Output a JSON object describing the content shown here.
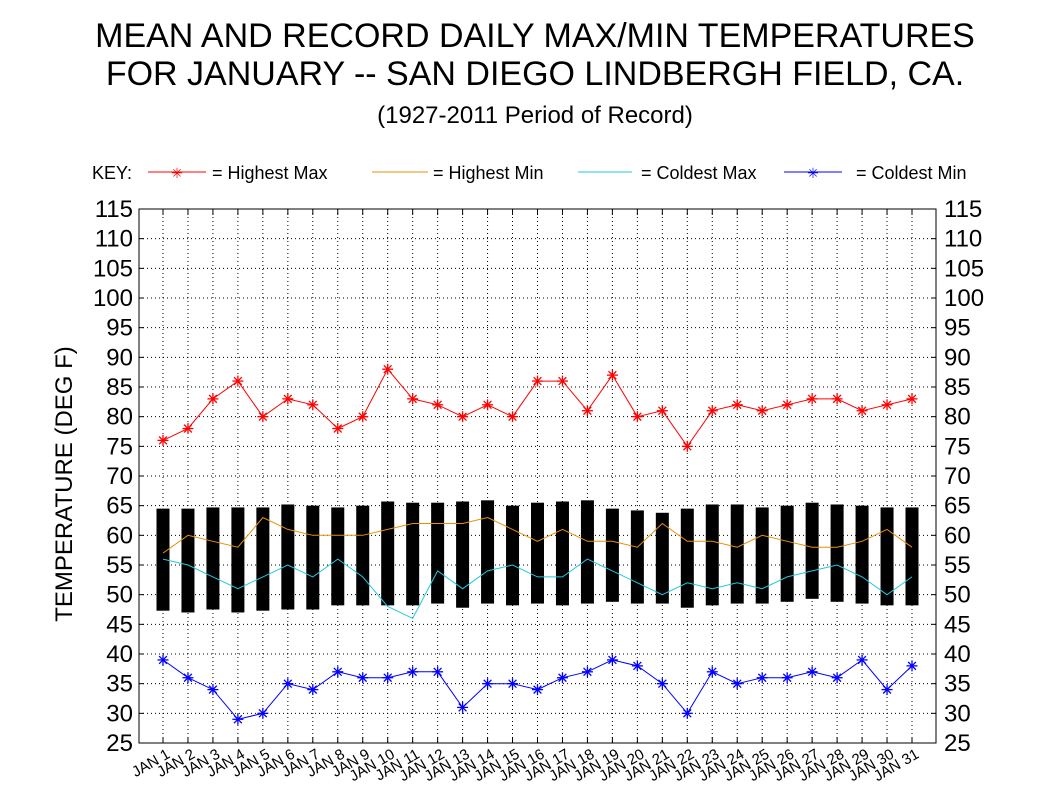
{
  "title_line1": "MEAN AND RECORD DAILY MAX/MIN TEMPERATURES",
  "title_line2": "FOR JANUARY -- SAN DIEGO LINDBERGH FIELD, CA.",
  "subtitle": "(1927-2011 Period of Record)",
  "key": {
    "label": "KEY:",
    "highest_max": "= Highest Max",
    "highest_min": "= Highest Min",
    "coldest_max": "= Coldest Max",
    "coldest_min": "= Coldest Min"
  },
  "colors": {
    "highest_max": "#ff0000",
    "highest_min": "#e8900a",
    "coldest_max": "#22c8e0",
    "coldest_min": "#0000ff",
    "bars": "#000000",
    "grid": "#000000"
  },
  "chart_data": {
    "type": "line",
    "ylabel": "TEMPERATURE (DEG F)",
    "ylim": [
      25,
      115
    ],
    "yticks": [
      25,
      30,
      35,
      40,
      45,
      50,
      55,
      60,
      65,
      70,
      75,
      80,
      85,
      90,
      95,
      100,
      105,
      110,
      115
    ],
    "grid": true,
    "legend": "top",
    "categories": [
      "JAN 1",
      "JAN 2",
      "JAN 3",
      "JAN 4",
      "JAN 5",
      "JAN 6",
      "JAN 7",
      "JAN 8",
      "JAN 9",
      "JAN 10",
      "JAN 11",
      "JAN 12",
      "JAN 13",
      "JAN 14",
      "JAN 15",
      "JAN 16",
      "JAN 17",
      "JAN 18",
      "JAN 19",
      "JAN 20",
      "JAN 21",
      "JAN 22",
      "JAN 23",
      "JAN 24",
      "JAN 25",
      "JAN 26",
      "JAN 27",
      "JAN 28",
      "JAN 29",
      "JAN 30",
      "JAN 31"
    ],
    "bars": {
      "high": [
        64.5,
        64.5,
        64.7,
        64.7,
        64.7,
        65.2,
        65.0,
        64.7,
        65.0,
        65.7,
        65.5,
        65.5,
        65.7,
        65.9,
        65.0,
        65.5,
        65.7,
        65.9,
        64.5,
        64.2,
        63.8,
        64.5,
        65.2,
        65.2,
        64.7,
        65.0,
        65.5,
        65.2,
        65.0,
        64.7,
        64.7
      ],
      "low": [
        47.3,
        47.0,
        47.5,
        47.0,
        47.3,
        47.5,
        47.5,
        48.2,
        48.2,
        48.2,
        48.2,
        48.5,
        47.8,
        48.5,
        48.2,
        48.5,
        48.2,
        48.5,
        48.8,
        48.5,
        48.5,
        47.8,
        48.2,
        48.5,
        48.5,
        48.8,
        49.3,
        48.8,
        48.5,
        48.2,
        48.2
      ]
    },
    "series": [
      {
        "key": "highest_max",
        "markers": true,
        "values": [
          76,
          78,
          83,
          86,
          80,
          83,
          82,
          78,
          80,
          88,
          83,
          82,
          80,
          82,
          80,
          86,
          86,
          81,
          87,
          80,
          81,
          75,
          81,
          82,
          81,
          82,
          83,
          83,
          81,
          82,
          83
        ]
      },
      {
        "key": "highest_min",
        "markers": false,
        "values": [
          57,
          60,
          59,
          58,
          63,
          61,
          60,
          60,
          60,
          61,
          62,
          62,
          62,
          63,
          61,
          59,
          61,
          59,
          59,
          58,
          62,
          59,
          59,
          58,
          60,
          59,
          58,
          58,
          59,
          61,
          58
        ]
      },
      {
        "key": "coldest_max",
        "markers": false,
        "values": [
          56,
          55,
          53,
          51,
          53,
          55,
          53,
          56,
          53,
          48,
          46,
          54,
          51,
          54,
          55,
          53,
          53,
          56,
          54,
          52,
          50,
          52,
          51,
          52,
          51,
          53,
          54,
          55,
          53,
          50,
          53
        ]
      },
      {
        "key": "coldest_min",
        "markers": true,
        "values": [
          39,
          36,
          34,
          29,
          30,
          35,
          34,
          37,
          36,
          36,
          37,
          37,
          31,
          35,
          35,
          34,
          36,
          37,
          39,
          38,
          35,
          30,
          37,
          35,
          36,
          36,
          37,
          36,
          39,
          34,
          38
        ]
      }
    ]
  }
}
